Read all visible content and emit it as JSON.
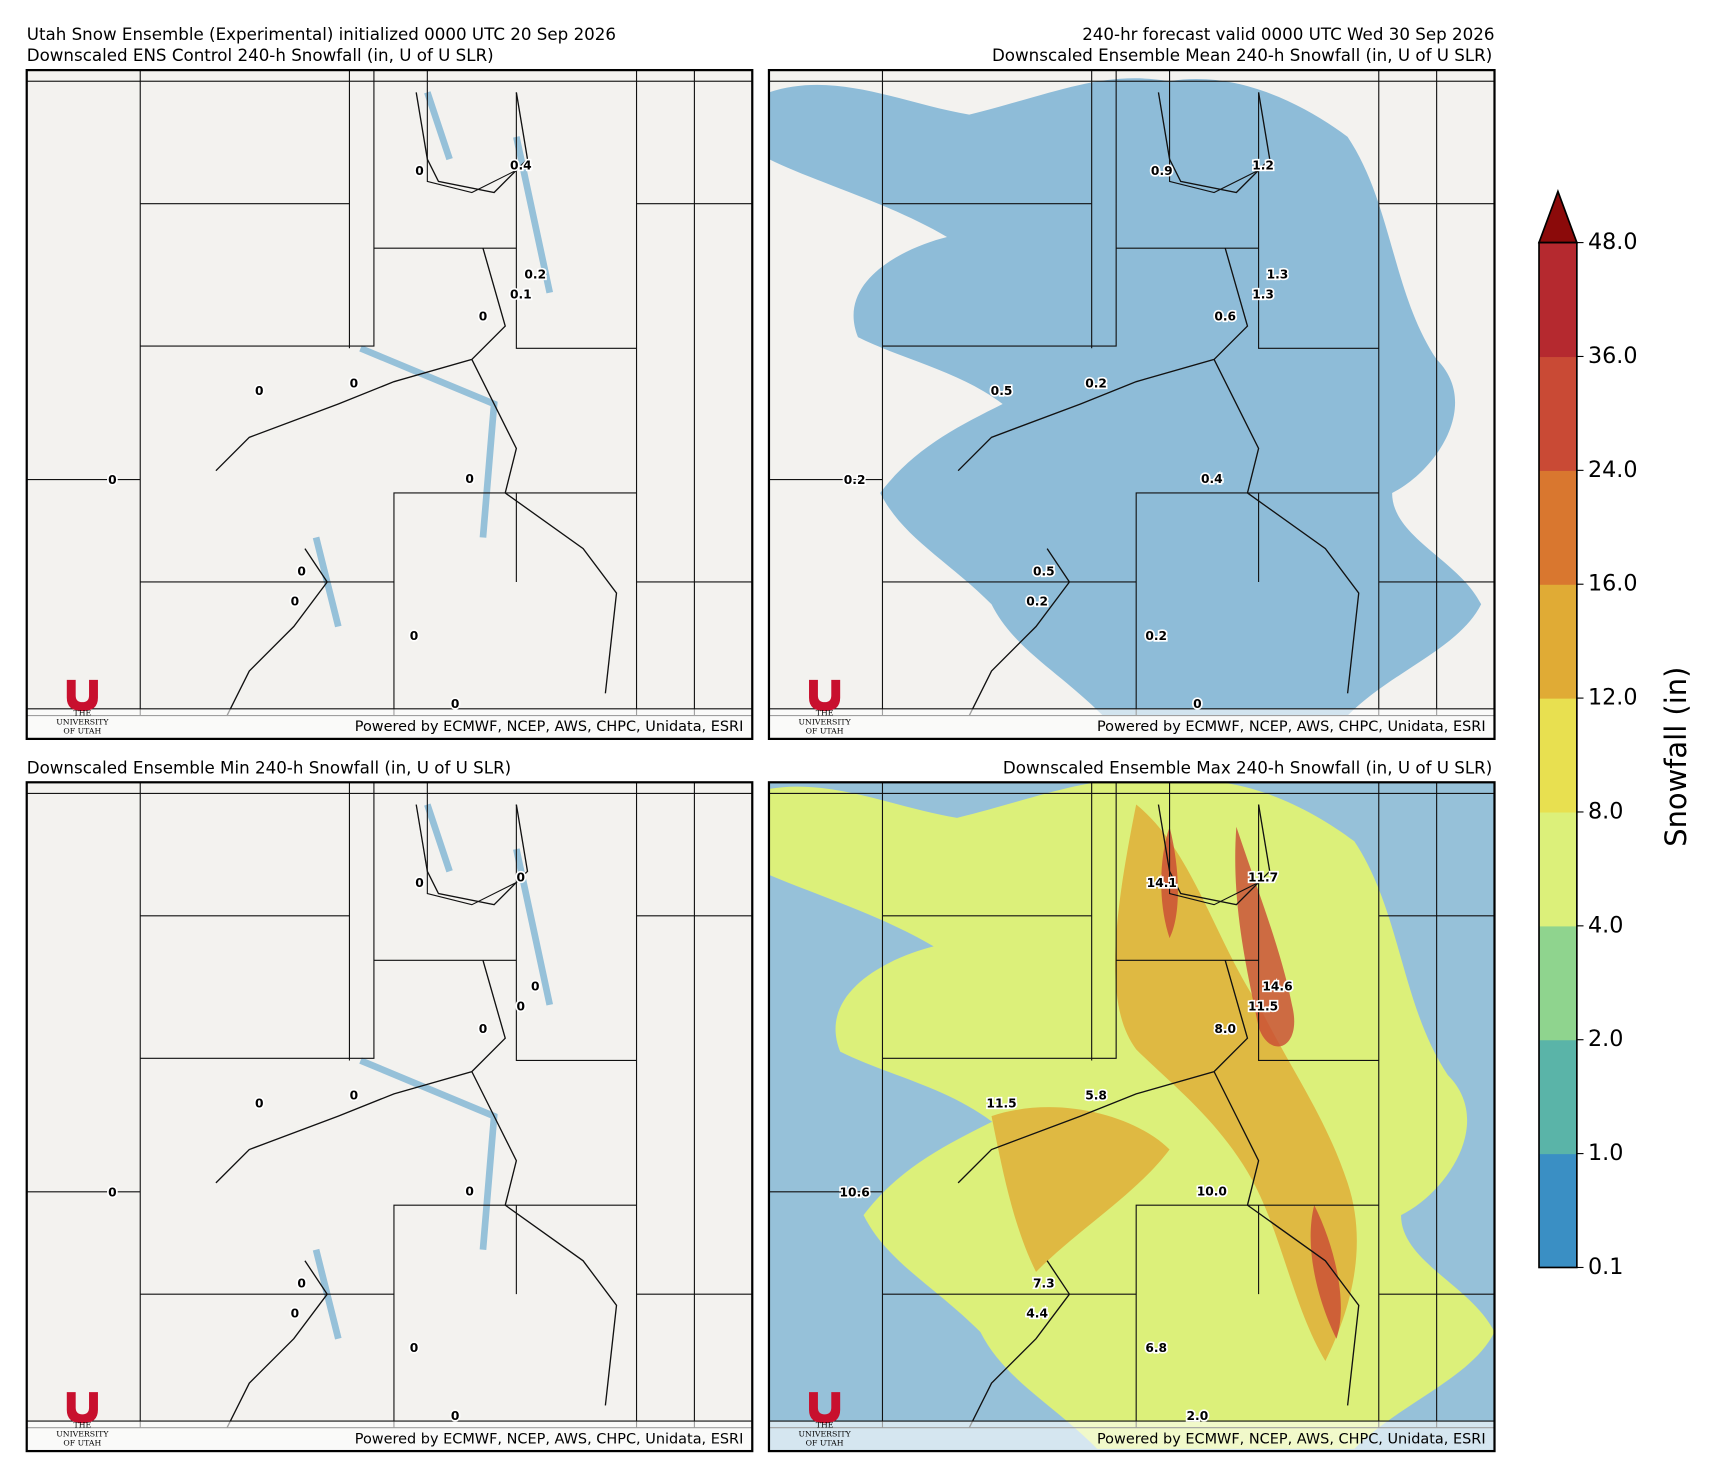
{
  "header": {
    "left": "Utah Snow Ensemble (Experimental) initialized 0000 UTC 20 Sep 2026",
    "right": "240-hr forecast valid 0000 UTC Wed 30 Sep 2026"
  },
  "panels": [
    {
      "title": "Downscaled ENS Control 240-h Snowfall (in, U of U SLR)",
      "labels": [
        "0.4",
        "0",
        "0.2",
        "0.1",
        "0",
        "0",
        "0",
        "0",
        "0",
        "0",
        "0",
        "0",
        "0"
      ]
    },
    {
      "title": "Downscaled Ensemble Mean 240-h Snowfall (in, U of U SLR)",
      "labels": [
        "1.2",
        "0.9",
        "1.3",
        "1.3",
        "0.6",
        "0.2",
        "0.5",
        "0.4",
        "0.2",
        "0.5",
        "0.2",
        "0.2",
        "0"
      ]
    },
    {
      "title": "Downscaled Ensemble Min 240-h Snowfall (in, U of U SLR)",
      "labels": [
        "0",
        "0",
        "0",
        "0",
        "0",
        "0",
        "0",
        "0",
        "0",
        "0",
        "0",
        "0",
        "0"
      ]
    },
    {
      "title": "Downscaled Ensemble Max 240-h Snowfall (in, U of U SLR)",
      "labels": [
        "11.7",
        "14.1",
        "14.6",
        "11.5",
        "8.0",
        "5.8",
        "11.5",
        "10.0",
        "10.6",
        "7.3",
        "4.4",
        "6.8",
        "2.0"
      ]
    }
  ],
  "credit": "Powered by ECMWF, NCEP, AWS, CHPC, Unidata, ESRI",
  "logo": [
    "THE",
    "UNIVERSITY",
    "OF UTAH"
  ],
  "colorbar": {
    "label": "Snowfall (in)",
    "ticks": [
      "0.1",
      "1.0",
      "2.0",
      "4.0",
      "8.0",
      "12.0",
      "16.0",
      "24.0",
      "36.0",
      "48.0"
    ],
    "colors": [
      "#3a8fc4",
      "#5ab4a8",
      "#8fd48e",
      "#dcf07a",
      "#e8e050",
      "#e0ab35",
      "#d9772f",
      "#c94a35",
      "#b5292f"
    ],
    "extend_color": "#8b0a0a"
  }
}
